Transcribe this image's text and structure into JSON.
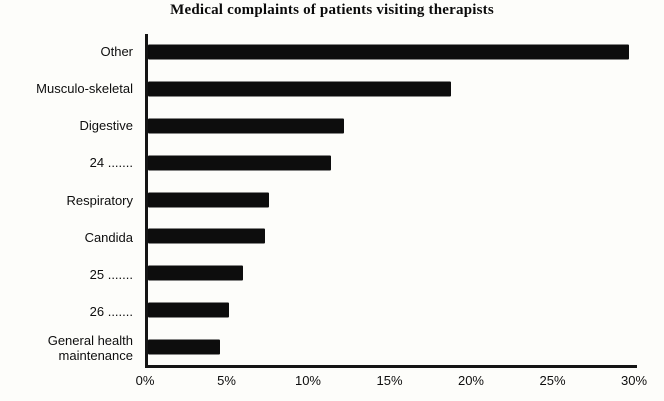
{
  "chart_data": {
    "type": "bar",
    "orientation": "horizontal",
    "title": "Medical complaints of patients visiting therapists",
    "categories": [
      "Other",
      "Musculo-skeletal",
      "Digestive",
      "24 .......",
      "Respiratory",
      "Candida",
      "25 .......",
      "26 .......",
      "General health maintenance"
    ],
    "values": [
      29.5,
      18.6,
      12.0,
      11.2,
      7.4,
      7.2,
      5.8,
      5.0,
      4.4
    ],
    "xlim": [
      0,
      30
    ],
    "tick_values": [
      0,
      5,
      10,
      15,
      20,
      25,
      30
    ],
    "tick_labels": [
      "0%",
      "5%",
      "10%",
      "15%",
      "20%",
      "25%",
      "30%"
    ],
    "ylabel": "",
    "xlabel": "",
    "legend": "none",
    "grid": false,
    "bar_color": "#0d0d0d",
    "axis_color": "#141414"
  }
}
